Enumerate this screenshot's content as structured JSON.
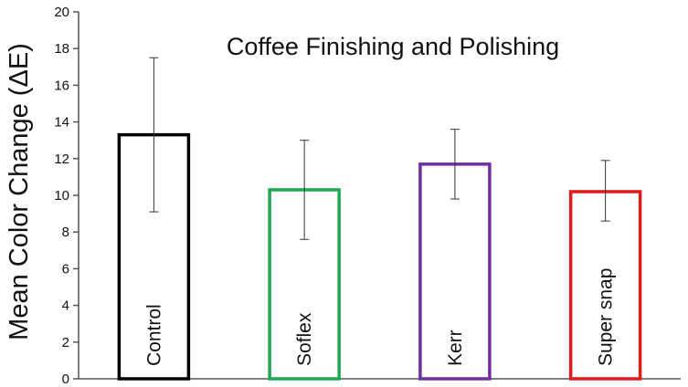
{
  "chart_data": {
    "type": "bar",
    "title": "Coffee Finishing and Polishing",
    "xlabel": "",
    "ylabel": "Mean Color Change (ΔE)",
    "ylim": [
      0,
      20
    ],
    "yticks": [
      0,
      2,
      4,
      6,
      8,
      10,
      12,
      14,
      16,
      18,
      20
    ],
    "grid": false,
    "categories": [
      "Control",
      "Soflex",
      "Kerr",
      "Super snap"
    ],
    "values": [
      13.3,
      10.3,
      11.7,
      10.2
    ],
    "error_low": [
      9.1,
      7.6,
      9.8,
      8.6
    ],
    "error_high": [
      17.5,
      13.0,
      13.6,
      11.9
    ],
    "colors": [
      "#000000",
      "#1fa84f",
      "#7030a0",
      "#e01b1b"
    ],
    "fill": "#ffffff"
  }
}
